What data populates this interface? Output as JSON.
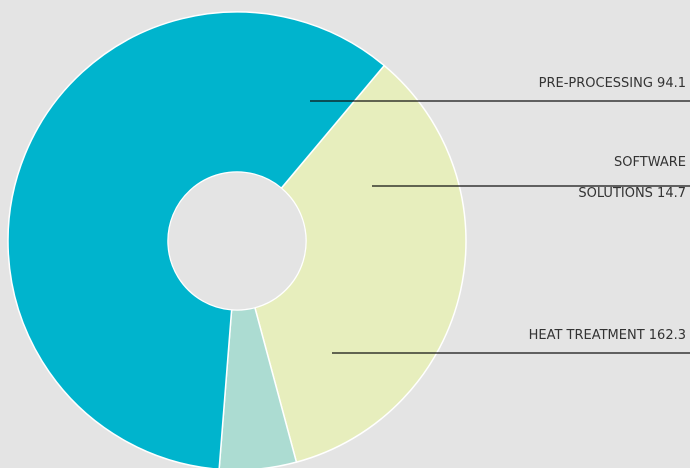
{
  "chart_data": {
    "type": "pie",
    "donut": true,
    "categories": [
      "PRE-PROCESSING",
      "SOFTWARE SOLUTIONS",
      "HEAT TREATMENT"
    ],
    "values": [
      94.1,
      14.7,
      162.3
    ],
    "labels": [
      {
        "lines": [
          "PRE-PROCESSING 94.1"
        ]
      },
      {
        "lines": [
          "SOFTWARE",
          "SOLUTIONS 14.7"
        ]
      },
      {
        "lines": [
          "HEAT TREATMENT 162.3"
        ]
      }
    ],
    "colors": [
      "#e7eebd",
      "#acdcd2",
      "#00b4cd"
    ],
    "background": "#e4e4e4",
    "line_color": "#111111",
    "text_color": "#333333"
  }
}
